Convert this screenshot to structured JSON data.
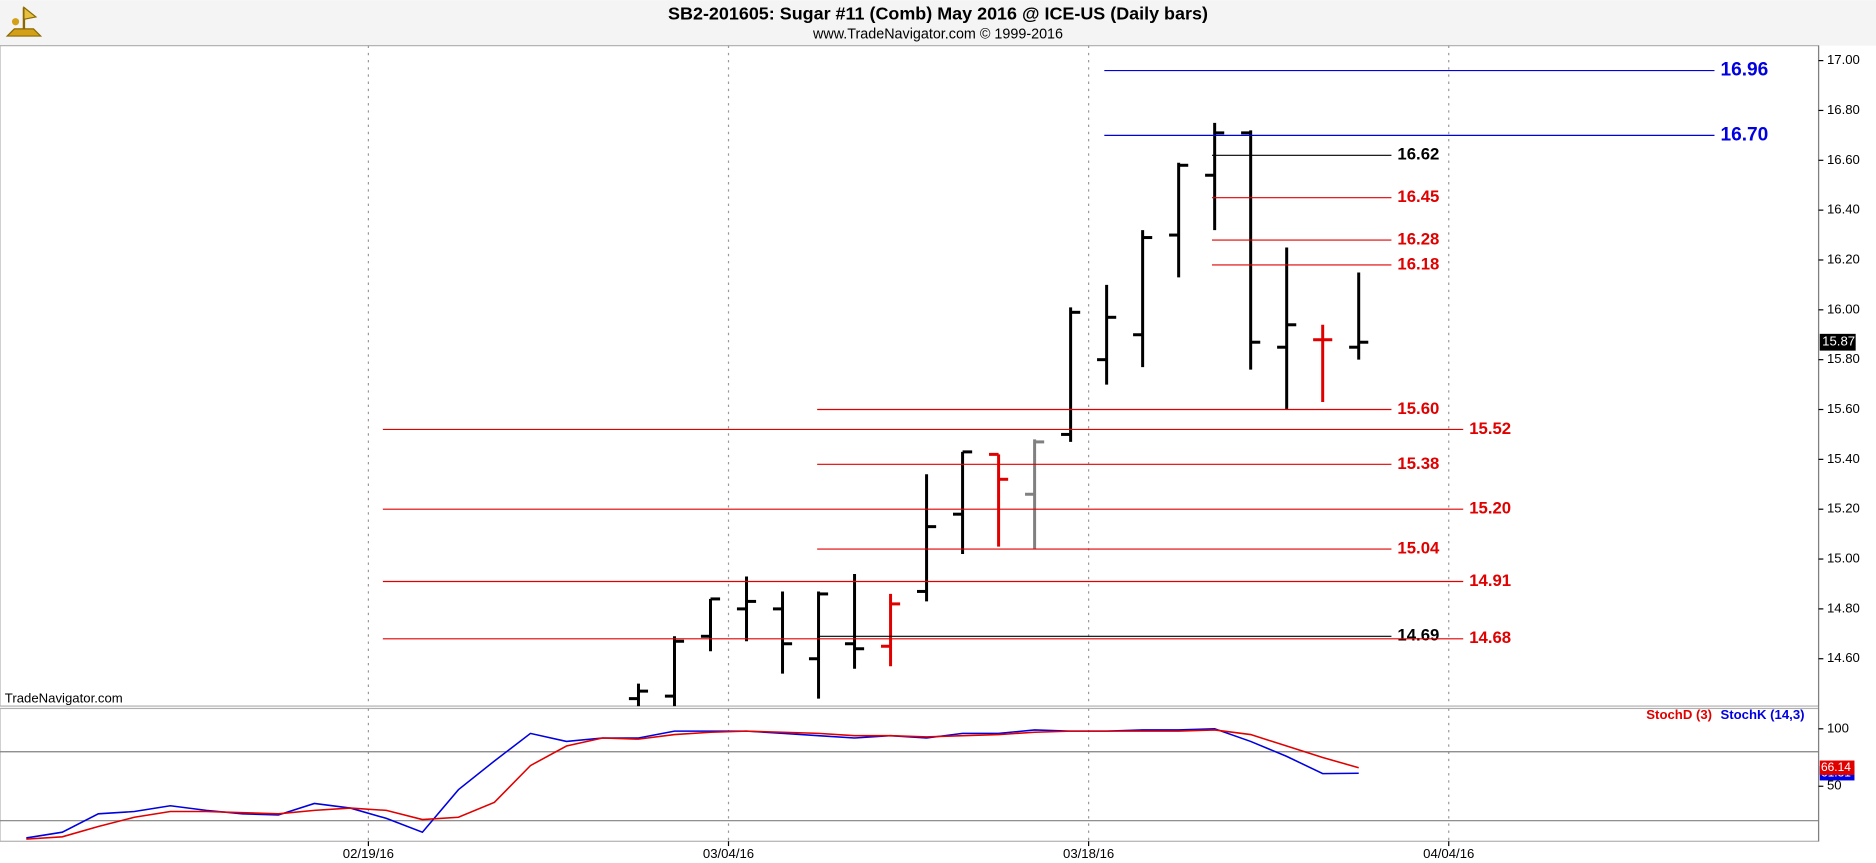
{
  "chart_data": [
    {
      "type": "ohlc",
      "title": "SB2-201605:  Sugar #11 (Comb) May 2016 @ ICE-US  (Daily bars)",
      "subtitle": "www.TradeNavigator.com © 1999-2016",
      "watermark": "TradeNavigator.com",
      "x": [
        17,
        18,
        19,
        20,
        21,
        22,
        23,
        24,
        25,
        26,
        27,
        28,
        29,
        30,
        31,
        32,
        33,
        34,
        35,
        36,
        37
      ],
      "open": [
        14.44,
        14.45,
        14.69,
        14.8,
        14.8,
        14.6,
        14.66,
        14.65,
        14.87,
        15.18,
        15.42,
        15.26,
        15.5,
        15.8,
        15.9,
        16.3,
        16.54,
        16.71,
        15.85,
        15.88,
        15.85
      ],
      "high": [
        14.5,
        14.69,
        14.84,
        14.93,
        14.87,
        14.87,
        14.94,
        14.86,
        15.34,
        15.43,
        15.42,
        15.48,
        16.01,
        16.1,
        16.32,
        16.59,
        16.75,
        16.72,
        16.25,
        15.94,
        16.15
      ],
      "low": [
        14.38,
        14.4,
        14.63,
        14.67,
        14.54,
        14.44,
        14.56,
        14.57,
        14.83,
        15.02,
        15.05,
        15.04,
        15.47,
        15.7,
        15.77,
        16.13,
        16.32,
        15.76,
        15.6,
        15.63,
        15.8
      ],
      "close": [
        14.47,
        14.67,
        14.84,
        14.83,
        14.66,
        14.86,
        14.64,
        14.82,
        15.13,
        15.43,
        15.32,
        15.47,
        15.99,
        15.97,
        16.29,
        16.58,
        16.71,
        15.87,
        15.94,
        15.88,
        15.87
      ],
      "colors": [
        "#000000",
        "#000000",
        "#000000",
        "#000000",
        "#000000",
        "#000000",
        "#000000",
        "#e00000",
        "#000000",
        "#000000",
        "#e00000",
        "#808080",
        "#000000",
        "#000000",
        "#000000",
        "#000000",
        "#000000",
        "#000000",
        "#000000",
        "#e00000",
        "#000000"
      ],
      "ylim": [
        14.41,
        17.06
      ],
      "yticks": [
        {
          "value": 14.6,
          "label": "14.60"
        },
        {
          "value": 14.8,
          "label": "14.80"
        },
        {
          "value": 15,
          "label": "15.00"
        },
        {
          "value": 15.2,
          "label": "15.20"
        },
        {
          "value": 15.4,
          "label": "15.40"
        },
        {
          "value": 15.6,
          "label": "15.60"
        },
        {
          "value": 15.8,
          "label": "15.80"
        },
        {
          "value": 16,
          "label": "16.00"
        },
        {
          "value": 16.2,
          "label": "16.20"
        },
        {
          "value": 16.4,
          "label": "16.40"
        },
        {
          "value": 16.6,
          "label": "16.60"
        },
        {
          "value": 16.8,
          "label": "16.80"
        },
        {
          "value": 17,
          "label": "17.00"
        }
      ],
      "levels": [
        {
          "value": 16.96,
          "label": "16.96",
          "color": "#0000e0"
        },
        {
          "value": 16.7,
          "label": "16.70",
          "color": "#0000e0"
        },
        {
          "value": 16.62,
          "label": "16.62",
          "color": "#000000"
        },
        {
          "value": 16.45,
          "label": "16.45",
          "color": "#e00000"
        },
        {
          "value": 16.28,
          "label": "16.28",
          "color": "#e00000"
        },
        {
          "value": 16.18,
          "label": "16.18",
          "color": "#e00000"
        },
        {
          "value": 15.6,
          "label": "15.60",
          "color": "#e00000"
        },
        {
          "value": 15.52,
          "label": "15.52",
          "color": "#e00000"
        },
        {
          "value": 15.38,
          "label": "15.38",
          "color": "#e00000"
        },
        {
          "value": 15.2,
          "label": "15.20",
          "color": "#e00000"
        },
        {
          "value": 15.04,
          "label": "15.04",
          "color": "#e00000"
        },
        {
          "value": 14.91,
          "label": "14.91",
          "color": "#e00000"
        },
        {
          "value": 14.69,
          "label": "14.69",
          "color": "#000000"
        },
        {
          "value": 14.68,
          "label": "14.68",
          "color": "#e00000"
        }
      ]
    },
    {
      "type": "line",
      "xlim": [
        -0.73,
        49.77
      ],
      "xticks": [
        {
          "value": 9.5,
          "label": "02/19/16"
        },
        {
          "value": 19.5,
          "label": "03/04/16"
        },
        {
          "value": 29.5,
          "label": "03/18/16"
        },
        {
          "value": 39.5,
          "label": "04/04/16"
        }
      ],
      "ylim": [
        2.1,
        117.7
      ],
      "yticks": [
        50,
        100
      ],
      "reference_lines": [
        20,
        80
      ],
      "series": [
        {
          "name": "StochD (3)",
          "color": "#e00000",
          "values": [
            4,
            6,
            15,
            23,
            28,
            28,
            27,
            26,
            29,
            31,
            29,
            21,
            23,
            36,
            68,
            85,
            92,
            91,
            95,
            97,
            98,
            97,
            96,
            94,
            94,
            93,
            94,
            95,
            97,
            98,
            98,
            98,
            98,
            99,
            95,
            85,
            75,
            66.14
          ]
        },
        {
          "name": "StochK (14,3)",
          "color": "#0000e0",
          "values": [
            5,
            10,
            26,
            28,
            33,
            29,
            26,
            25,
            35,
            31,
            22,
            10,
            47,
            72,
            96,
            89,
            92,
            92,
            98,
            98,
            98,
            96,
            94,
            92,
            94,
            92,
            96,
            96,
            99,
            98,
            98,
            99,
            99,
            100,
            89,
            76,
            61,
            61.31
          ]
        }
      ]
    }
  ]
}
